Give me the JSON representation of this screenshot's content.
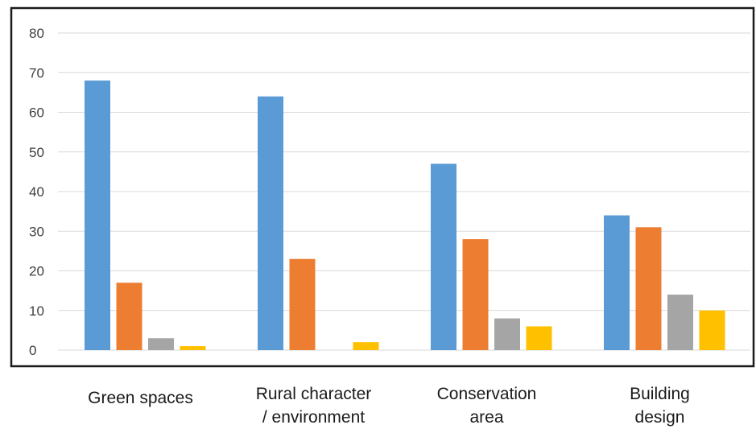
{
  "chart_data": {
    "type": "bar",
    "categories": [
      [
        "Green spaces"
      ],
      [
        "Rural character",
        "/ environment"
      ],
      [
        "Conservation",
        "area"
      ],
      [
        "Building",
        "design"
      ]
    ],
    "series": [
      {
        "values": [
          68,
          64,
          47,
          34
        ],
        "color": "#5b9bd5"
      },
      {
        "values": [
          17,
          23,
          28,
          31
        ],
        "color": "#ed7d31"
      },
      {
        "values": [
          3,
          0,
          8,
          14
        ],
        "color": "#a5a5a5"
      },
      {
        "values": [
          1,
          2,
          6,
          10
        ],
        "color": "#ffc000"
      }
    ],
    "ylim": [
      0,
      80
    ],
    "yticks": [
      "0",
      "10",
      "20",
      "30",
      "40",
      "50",
      "60",
      "70",
      "80"
    ],
    "grid": true,
    "legend": "none",
    "gridline_color": "#d9d9d9",
    "frame_color": "#1a1a1a"
  }
}
